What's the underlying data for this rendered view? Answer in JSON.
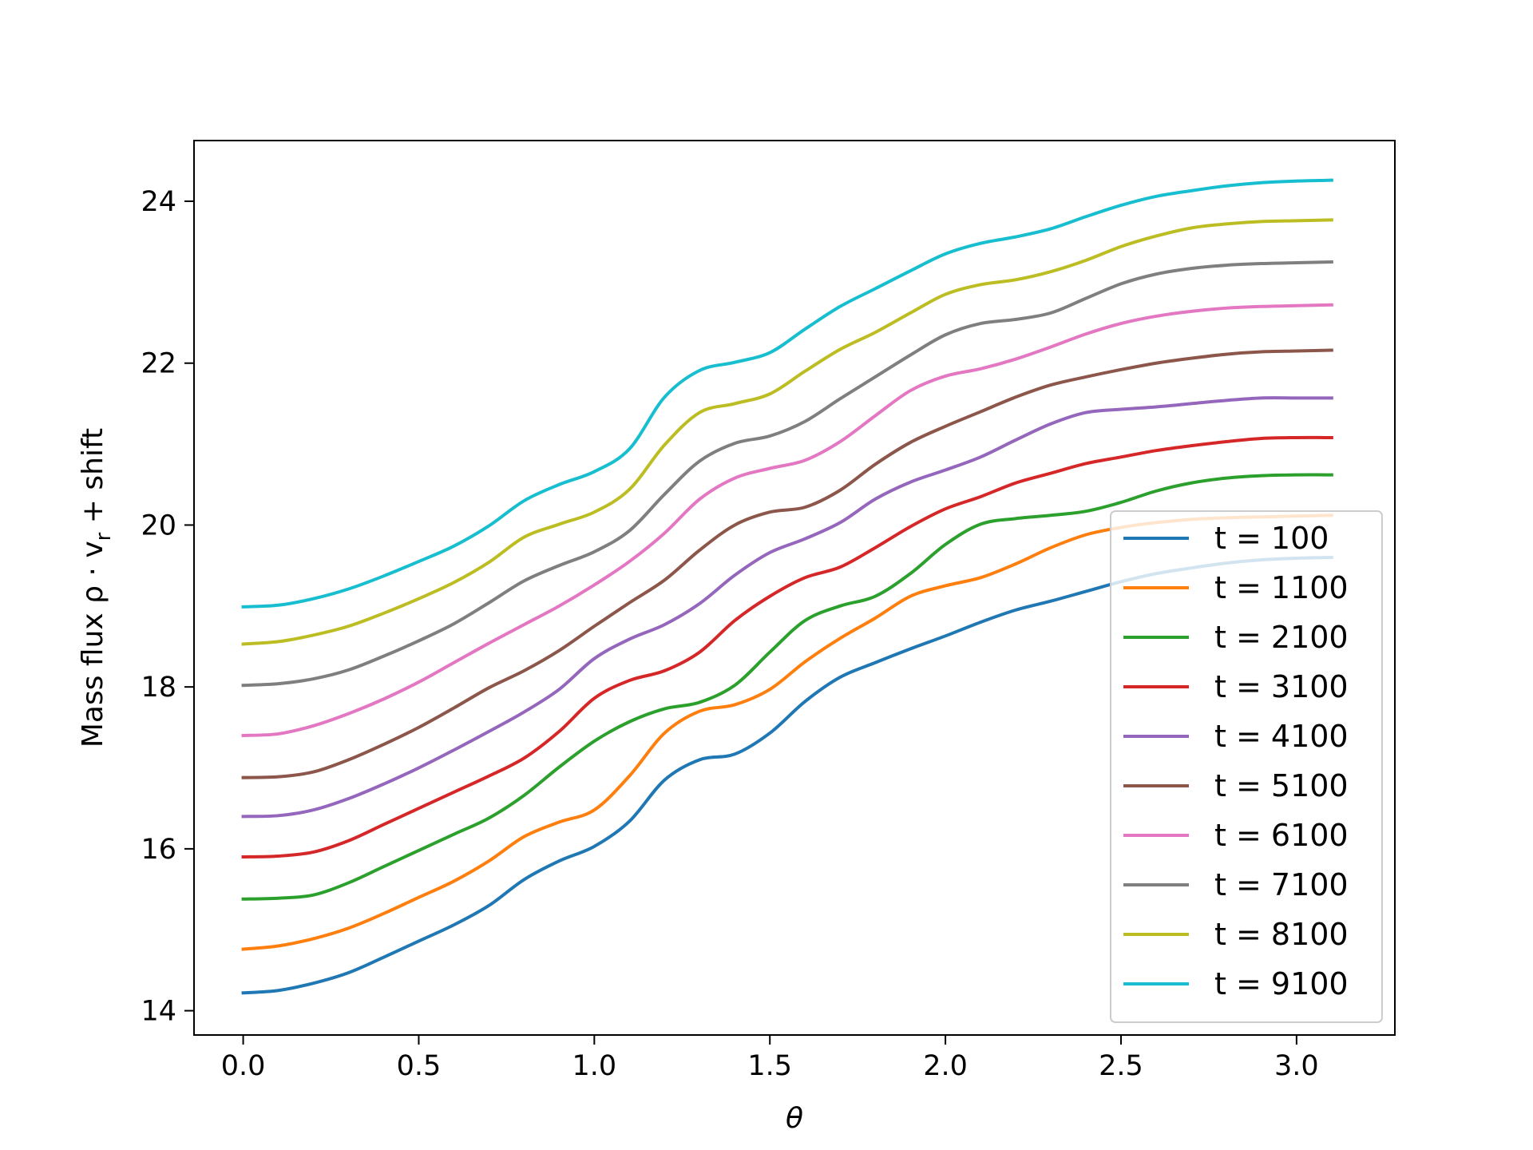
{
  "chart_data": {
    "type": "line",
    "title": "",
    "xlabel": "θ",
    "ylabel": "Mass flux ρ · v_r + shift",
    "ylabel_parts": {
      "main": "Mass flux ρ · v",
      "sub": "r",
      "tail": " + shift"
    },
    "xlim": [
      -0.14,
      3.28
    ],
    "ylim": [
      13.7,
      24.75
    ],
    "xticks": [
      0.0,
      0.5,
      1.0,
      1.5,
      2.0,
      2.5,
      3.0
    ],
    "xtick_labels": [
      "0.0",
      "0.5",
      "1.0",
      "1.5",
      "2.0",
      "2.5",
      "3.0"
    ],
    "yticks": [
      14,
      16,
      18,
      20,
      22,
      24
    ],
    "ytick_labels": [
      "14",
      "16",
      "18",
      "20",
      "22",
      "24"
    ],
    "grid": false,
    "legend_position": "lower-right",
    "x": [
      0.0,
      0.1,
      0.2,
      0.3,
      0.4,
      0.5,
      0.6,
      0.7,
      0.8,
      0.9,
      1.0,
      1.1,
      1.2,
      1.3,
      1.4,
      1.5,
      1.6,
      1.7,
      1.8,
      1.9,
      2.0,
      2.1,
      2.2,
      2.3,
      2.4,
      2.5,
      2.6,
      2.7,
      2.8,
      2.9,
      3.0,
      3.1
    ],
    "series": [
      {
        "name": "t = 100",
        "color": "#1f77b4",
        "values": [
          14.22,
          14.25,
          14.34,
          14.47,
          14.66,
          14.86,
          15.06,
          15.3,
          15.62,
          15.85,
          16.03,
          16.34,
          16.85,
          17.1,
          17.17,
          17.43,
          17.82,
          18.12,
          18.3,
          18.47,
          18.63,
          18.8,
          18.95,
          19.06,
          19.18,
          19.3,
          19.4,
          19.47,
          19.53,
          19.57,
          19.59,
          19.6
        ]
      },
      {
        "name": "t = 1100",
        "color": "#ff7f0e",
        "values": [
          14.76,
          14.8,
          14.89,
          15.02,
          15.2,
          15.4,
          15.6,
          15.85,
          16.15,
          16.33,
          16.48,
          16.9,
          17.43,
          17.7,
          17.78,
          17.97,
          18.31,
          18.6,
          18.85,
          19.12,
          19.25,
          19.35,
          19.52,
          19.72,
          19.88,
          19.97,
          20.03,
          20.07,
          20.09,
          20.1,
          20.11,
          20.12
        ]
      },
      {
        "name": "t = 2100",
        "color": "#2ca02c",
        "values": [
          15.38,
          15.39,
          15.43,
          15.58,
          15.78,
          15.98,
          16.18,
          16.38,
          16.66,
          17.01,
          17.33,
          17.57,
          17.73,
          17.81,
          18.02,
          18.43,
          18.82,
          19.0,
          19.12,
          19.4,
          19.76,
          20.01,
          20.08,
          20.12,
          20.17,
          20.28,
          20.42,
          20.52,
          20.58,
          20.61,
          20.62,
          20.62
        ]
      },
      {
        "name": "t = 3100",
        "color": "#d62728",
        "values": [
          15.9,
          15.91,
          15.96,
          16.1,
          16.3,
          16.5,
          16.7,
          16.9,
          17.12,
          17.45,
          17.86,
          18.08,
          18.2,
          18.43,
          18.82,
          19.12,
          19.35,
          19.48,
          19.72,
          19.98,
          20.2,
          20.35,
          20.52,
          20.64,
          20.76,
          20.84,
          20.92,
          20.98,
          21.03,
          21.07,
          21.08,
          21.08
        ]
      },
      {
        "name": "t = 4100",
        "color": "#9467bd",
        "values": [
          16.4,
          16.41,
          16.48,
          16.62,
          16.8,
          17.0,
          17.22,
          17.45,
          17.69,
          17.97,
          18.35,
          18.59,
          18.77,
          19.03,
          19.38,
          19.66,
          19.83,
          20.03,
          20.32,
          20.53,
          20.68,
          20.84,
          21.05,
          21.25,
          21.39,
          21.43,
          21.46,
          21.5,
          21.54,
          21.57,
          21.57,
          21.57
        ]
      },
      {
        "name": "t = 5100",
        "color": "#8c564b",
        "values": [
          16.88,
          16.89,
          16.95,
          17.1,
          17.29,
          17.5,
          17.74,
          17.99,
          18.2,
          18.45,
          18.75,
          19.04,
          19.32,
          19.69,
          20.0,
          20.16,
          20.22,
          20.43,
          20.75,
          21.02,
          21.22,
          21.4,
          21.58,
          21.73,
          21.83,
          21.92,
          22.0,
          22.06,
          22.11,
          22.14,
          22.15,
          22.16
        ]
      },
      {
        "name": "t = 6100",
        "color": "#e377c2",
        "values": [
          17.4,
          17.42,
          17.52,
          17.67,
          17.85,
          18.06,
          18.3,
          18.54,
          18.77,
          19.0,
          19.26,
          19.55,
          19.9,
          20.32,
          20.58,
          20.7,
          20.8,
          21.03,
          21.35,
          21.66,
          21.84,
          21.93,
          22.05,
          22.2,
          22.36,
          22.49,
          22.58,
          22.64,
          22.68,
          22.7,
          22.71,
          22.72
        ]
      },
      {
        "name": "t = 7100",
        "color": "#7f7f7f",
        "values": [
          18.02,
          18.04,
          18.1,
          18.21,
          18.38,
          18.57,
          18.78,
          19.04,
          19.31,
          19.5,
          19.67,
          19.93,
          20.38,
          20.79,
          21.01,
          21.1,
          21.28,
          21.56,
          21.83,
          22.1,
          22.35,
          22.49,
          22.54,
          22.62,
          22.8,
          22.98,
          23.1,
          23.17,
          23.21,
          23.23,
          23.24,
          23.25
        ]
      },
      {
        "name": "t = 8100",
        "color": "#bcbd22",
        "values": [
          18.53,
          18.56,
          18.64,
          18.75,
          18.91,
          19.09,
          19.29,
          19.54,
          19.85,
          20.01,
          20.16,
          20.44,
          20.99,
          21.39,
          21.5,
          21.62,
          21.9,
          22.17,
          22.38,
          22.62,
          22.85,
          22.97,
          23.03,
          23.13,
          23.27,
          23.44,
          23.57,
          23.67,
          23.72,
          23.75,
          23.76,
          23.77
        ]
      },
      {
        "name": "t = 9100",
        "color": "#17becf",
        "values": [
          18.99,
          19.01,
          19.09,
          19.21,
          19.37,
          19.55,
          19.74,
          19.99,
          20.3,
          20.5,
          20.66,
          20.94,
          21.58,
          21.91,
          22.01,
          22.13,
          22.42,
          22.7,
          22.92,
          23.14,
          23.35,
          23.48,
          23.56,
          23.66,
          23.81,
          23.95,
          24.06,
          24.13,
          24.19,
          24.23,
          24.25,
          24.26
        ]
      }
    ]
  }
}
